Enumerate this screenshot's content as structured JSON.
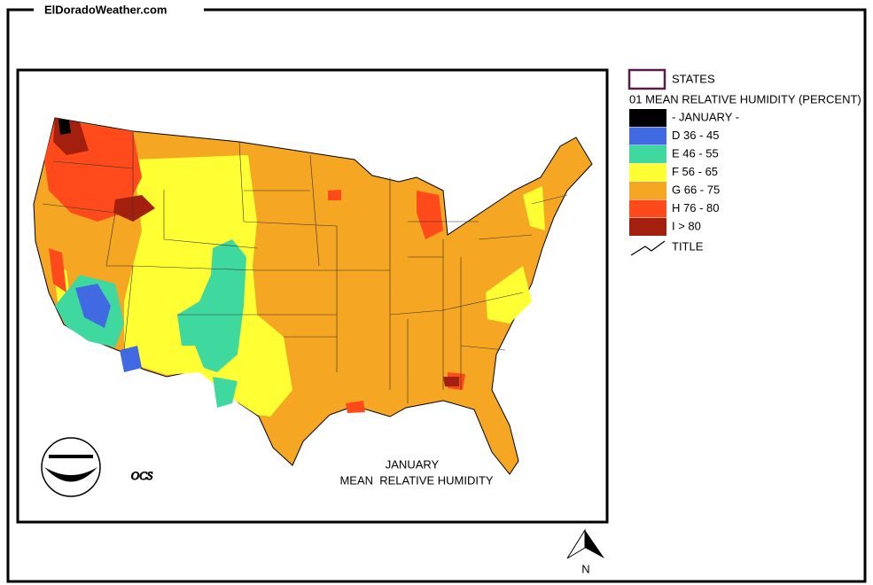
{
  "header": {
    "site": "ElDoradoWeather.com"
  },
  "map": {
    "title_line1": "JANUARY",
    "title_line2": "MEAN  RELATIVE HUMIDITY",
    "logo_text": "OCS",
    "north": "N"
  },
  "legend": {
    "states": "STATES",
    "heading": "01 MEAN RELATIVE HUMIDITY (PERCENT)",
    "items": [
      {
        "label": "- JANUARY -",
        "color": "#000000"
      },
      {
        "label": "D 36 - 45",
        "color": "#4169e1"
      },
      {
        "label": "E 46 - 55",
        "color": "#3fd9a0"
      },
      {
        "label": "F 56 - 65",
        "color": "#ffff33"
      },
      {
        "label": "G 66 - 75",
        "color": "#f5a623"
      },
      {
        "label": "H 76 - 80",
        "color": "#ff4a1c"
      },
      {
        "label": "I > 80",
        "color": "#a3200f"
      }
    ],
    "title": "TITLE"
  }
}
